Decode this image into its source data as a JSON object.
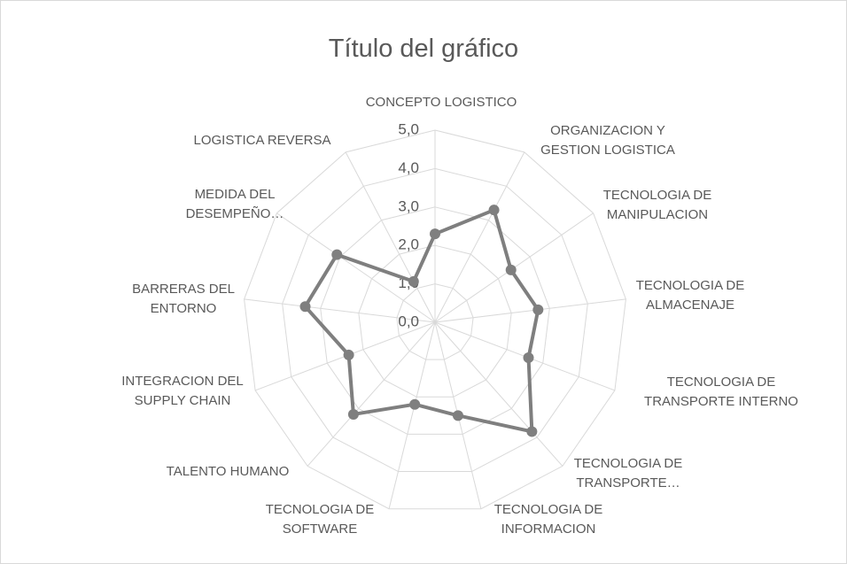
{
  "chart_data": {
    "type": "radar",
    "title": "Título del gráfico",
    "categories": [
      "CONCEPTO LOGISTICO",
      "ORGANIZACION Y GESTION LOGISTICA",
      "TECNOLOGIA DE MANIPULACION",
      "TECNOLOGIA DE ALMACENAJE",
      "TECNOLOGIA DE TRANSPORTE INTERNO",
      "TECNOLOGIA DE TRANSPORTE…",
      "TECNOLOGIA DE INFORMACION",
      "TECNOLOGIA DE SOFTWARE",
      "TALENTO HUMANO",
      "INTEGRACION DEL SUPPLY CHAIN",
      "BARRERAS DEL ENTORNO",
      "MEDIDA DEL DESEMPEÑO…",
      "LOGISTICA REVERSA"
    ],
    "values": [
      2.3,
      3.3,
      2.4,
      2.7,
      2.6,
      3.8,
      2.5,
      2.2,
      3.2,
      2.4,
      3.4,
      3.1,
      1.2
    ],
    "color": "#7f7f7f",
    "ylim": [
      0,
      5
    ],
    "yticks": [
      {
        "value": 0,
        "label": "0,0"
      },
      {
        "value": 1,
        "label": "1,0"
      },
      {
        "value": 2,
        "label": "2,0"
      },
      {
        "value": 3,
        "label": "3,0"
      },
      {
        "value": 4,
        "label": "4,0"
      },
      {
        "value": 5,
        "label": "5,0"
      }
    ],
    "grid": true
  }
}
